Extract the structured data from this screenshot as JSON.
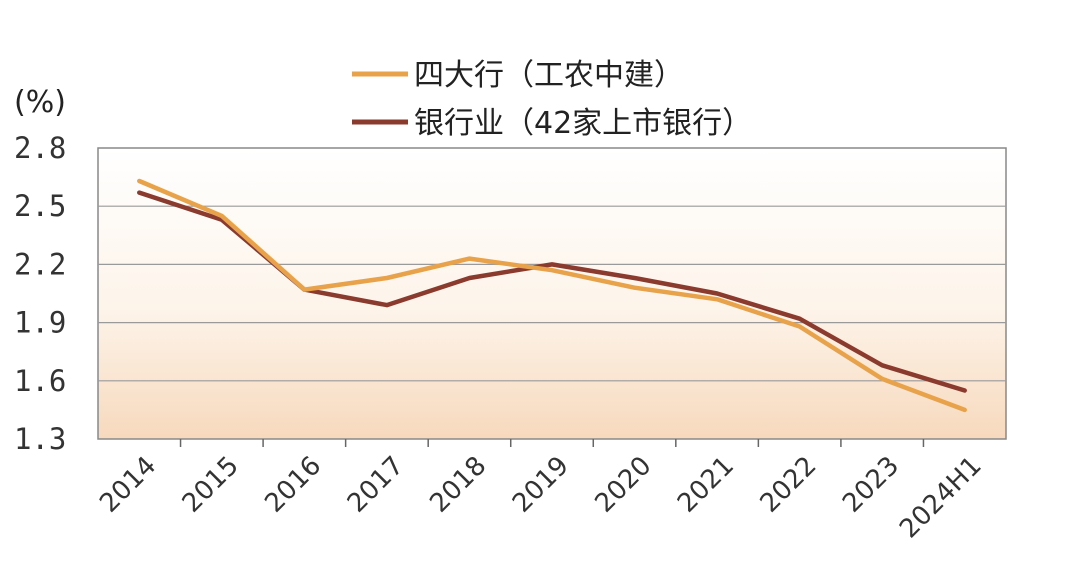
{
  "chart_data": {
    "type": "line",
    "unit_label": "(%)",
    "categories": [
      "2014",
      "2015",
      "2016",
      "2017",
      "2018",
      "2019",
      "2020",
      "2021",
      "2022",
      "2023",
      "2024H1"
    ],
    "y_ticks": [
      "2.8",
      "2.5",
      "2.2",
      "1.9",
      "1.6",
      "1.3"
    ],
    "ylim": [
      1.3,
      2.8
    ],
    "grid": true,
    "legend_position": "top-center",
    "series": [
      {
        "name": "四大行（工农中建）",
        "color": "#E8A24A",
        "values": [
          2.63,
          2.45,
          2.07,
          2.13,
          2.23,
          2.17,
          2.08,
          2.02,
          1.88,
          1.61,
          1.45
        ]
      },
      {
        "name": "银行业（42家上市银行）",
        "color": "#8B3A2E",
        "values": [
          2.57,
          2.43,
          2.07,
          1.99,
          2.13,
          2.2,
          2.13,
          2.05,
          1.92,
          1.68,
          1.55
        ]
      }
    ]
  }
}
